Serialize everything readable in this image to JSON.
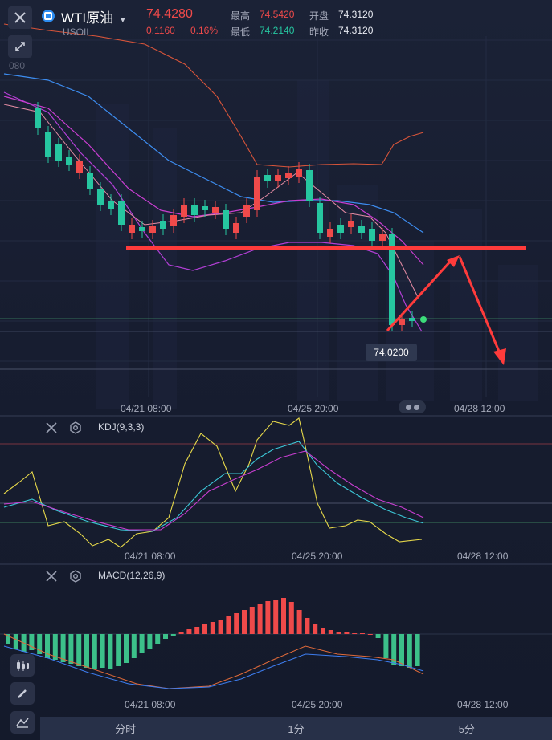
{
  "header": {
    "symbol_name": "WTI原油",
    "symbol_code": "USOIL",
    "price": "74.4280",
    "change": "0.1160",
    "change_pct": "0.16%",
    "high_label": "最高",
    "high_value": "74.5420",
    "low_label": "最低",
    "low_value": "74.2140",
    "open_label": "开盘",
    "open_value": "74.3120",
    "prev_close_label": "昨收",
    "prev_close_value": "74.3120",
    "axis_label_top": "080"
  },
  "main_chart": {
    "x_labels": [
      "04/21 08:00",
      "04/25 20:00",
      "04/28 12:00"
    ],
    "last_price_tooltip": "74.0200"
  },
  "kdj": {
    "label": "KDJ(9,3,3)",
    "x_labels": [
      "04/21 08:00",
      "04/25 20:00",
      "04/28 12:00"
    ]
  },
  "macd": {
    "label": "MACD(12,26,9)",
    "x_labels": [
      "04/21 08:00",
      "04/25 20:00",
      "04/28 12:00"
    ]
  },
  "tabs": [
    "分时",
    "1分",
    "5分"
  ],
  "colors": {
    "up": "#f04a4a",
    "down": "#26c6a0",
    "accent": "#2d8cf0",
    "annotation": "#ff3b3b"
  },
  "icons": {
    "close": "close-icon",
    "collapse": "collapse-icon",
    "candles": "candles-icon",
    "pen": "pen-icon",
    "line_tool": "line-tool-icon",
    "settings": "gear-icon"
  }
}
